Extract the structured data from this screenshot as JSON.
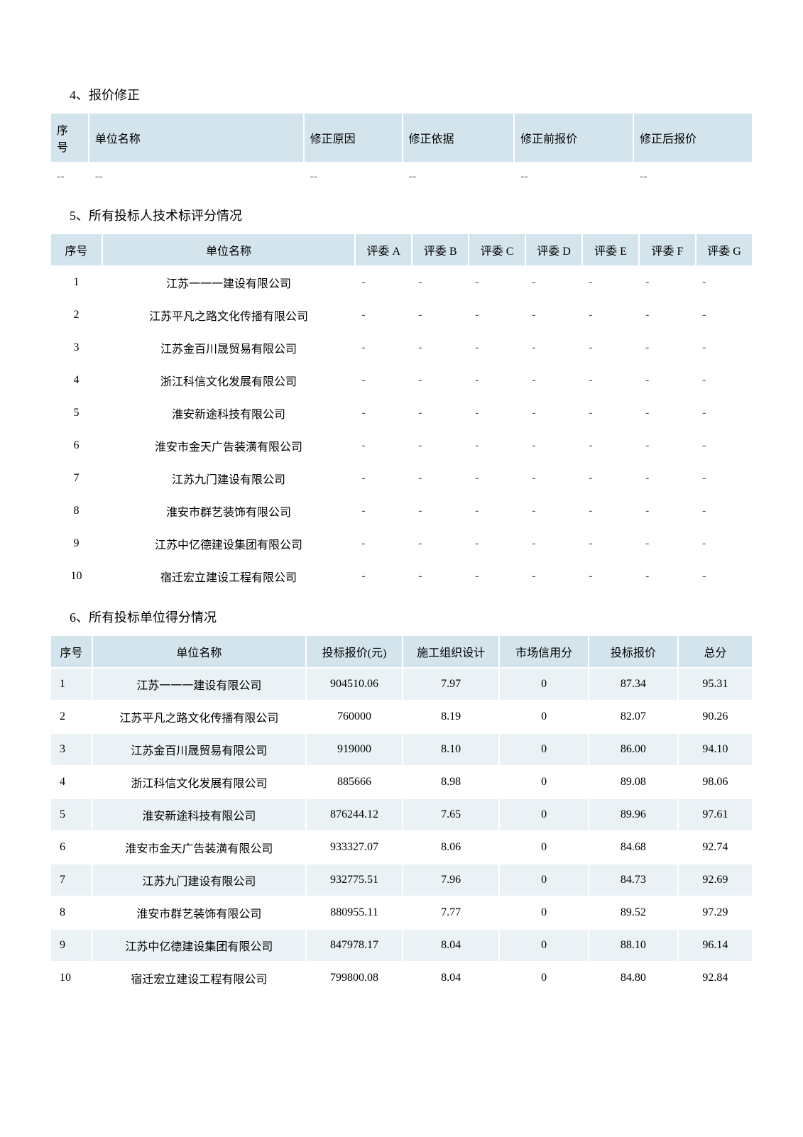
{
  "section4": {
    "title": "4、报价修正",
    "columns": [
      "序\n号",
      "单位名称",
      "修正原因",
      "修正依据",
      "修正前报价",
      "修正后报价"
    ],
    "rows": [
      [
        "--",
        "--",
        "--",
        "--",
        "--",
        "--"
      ]
    ]
  },
  "section5": {
    "title": "5、所有投标人技术标评分情况",
    "columns": [
      "序号",
      "单位名称",
      "评委 A",
      "评委 B",
      "评委 C",
      "评委 D",
      "评委 E",
      "评委 F",
      "评委 G"
    ],
    "rows": [
      {
        "seq": "1",
        "name": "江苏一一一建设有限公司",
        "a": "-",
        "b": "-",
        "c": "-",
        "d": "-",
        "e": "-",
        "f": "-",
        "g": "-"
      },
      {
        "seq": "2",
        "name": "江苏平凡之路文化传播有限公司",
        "a": "-",
        "b": "-",
        "c": "-",
        "d": "-",
        "e": "-",
        "f": "-",
        "g": "-"
      },
      {
        "seq": "3",
        "name": "江苏金百川晟贸易有限公司",
        "a": "-",
        "b": "-",
        "c": "-",
        "d": "-",
        "e": "-",
        "f": "-",
        "g": "-"
      },
      {
        "seq": "4",
        "name": "浙江科信文化发展有限公司",
        "a": "-",
        "b": "-",
        "c": "-",
        "d": "-",
        "e": "-",
        "f": "-",
        "g": "-"
      },
      {
        "seq": "5",
        "name": "淮安新途科技有限公司",
        "a": "-",
        "b": "-",
        "c": "-",
        "d": "-",
        "e": "-",
        "f": "-",
        "g": "-"
      },
      {
        "seq": "6",
        "name": "淮安市金天广告装潢有限公司",
        "a": "-",
        "b": "-",
        "c": "-",
        "d": "-",
        "e": "-",
        "f": "-",
        "g": "-"
      },
      {
        "seq": "7",
        "name": "江苏九门建设有限公司",
        "a": "-",
        "b": "-",
        "c": "-",
        "d": "-",
        "e": "-",
        "f": "-",
        "g": "-"
      },
      {
        "seq": "8",
        "name": "淮安市群艺装饰有限公司",
        "a": "-",
        "b": "-",
        "c": "-",
        "d": "-",
        "e": "-",
        "f": "-",
        "g": "-"
      },
      {
        "seq": "9",
        "name": "江苏中亿德建设集团有限公司",
        "a": "-",
        "b": "-",
        "c": "-",
        "d": "-",
        "e": "-",
        "f": "-",
        "g": "-"
      },
      {
        "seq": "10",
        "name": "宿迁宏立建设工程有限公司",
        "a": "-",
        "b": "-",
        "c": "-",
        "d": "-",
        "e": "-",
        "f": "-",
        "g": "-"
      }
    ]
  },
  "section6": {
    "title": "6、所有投标单位得分情况",
    "columns": [
      "序号",
      "单位名称",
      "投标报价(元)",
      "施工组织设计",
      "市场信用分",
      "投标报价",
      "总分"
    ],
    "rows": [
      {
        "seq": "1",
        "name": "江苏一一一建设有限公司",
        "price": "904510.06",
        "design": "7.97",
        "credit": "0",
        "bid": "87.34",
        "total": "95.31"
      },
      {
        "seq": "2",
        "name": "江苏平凡之路文化传播有限公司",
        "price": "760000",
        "design": "8.19",
        "credit": "0",
        "bid": "82.07",
        "total": "90.26"
      },
      {
        "seq": "3",
        "name": "江苏金百川晟贸易有限公司",
        "price": "919000",
        "design": "8.10",
        "credit": "0",
        "bid": "86.00",
        "total": "94.10"
      },
      {
        "seq": "4",
        "name": "浙江科信文化发展有限公司",
        "price": "885666",
        "design": "8.98",
        "credit": "0",
        "bid": "89.08",
        "total": "98.06"
      },
      {
        "seq": "5",
        "name": "淮安新途科技有限公司",
        "price": "876244.12",
        "design": "7.65",
        "credit": "0",
        "bid": "89.96",
        "total": "97.61"
      },
      {
        "seq": "6",
        "name": "淮安市金天广告装潢有限公司",
        "price": "933327.07",
        "design": "8.06",
        "credit": "0",
        "bid": "84.68",
        "total": "92.74"
      },
      {
        "seq": "7",
        "name": "江苏九门建设有限公司",
        "price": "932775.51",
        "design": "7.96",
        "credit": "0",
        "bid": "84.73",
        "total": "92.69"
      },
      {
        "seq": "8",
        "name": "淮安市群艺装饰有限公司",
        "price": "880955.11",
        "design": "7.77",
        "credit": "0",
        "bid": "89.52",
        "total": "97.29"
      },
      {
        "seq": "9",
        "name": "江苏中亿德建设集团有限公司",
        "price": "847978.17",
        "design": "8.04",
        "credit": "0",
        "bid": "88.10",
        "total": "96.14"
      },
      {
        "seq": "10",
        "name": "宿迁宏立建设工程有限公司",
        "price": "799800.08",
        "design": "8.04",
        "credit": "0",
        "bid": "84.80",
        "total": "92.84"
      }
    ]
  },
  "styling": {
    "header_bg": "#d3e4ed",
    "row_alt_bg": "#eaf2f6",
    "row_bg": "#ffffff",
    "font_size_body": 16,
    "font_size_title": 18,
    "text_color": "#000000",
    "border_spacing": 2
  }
}
